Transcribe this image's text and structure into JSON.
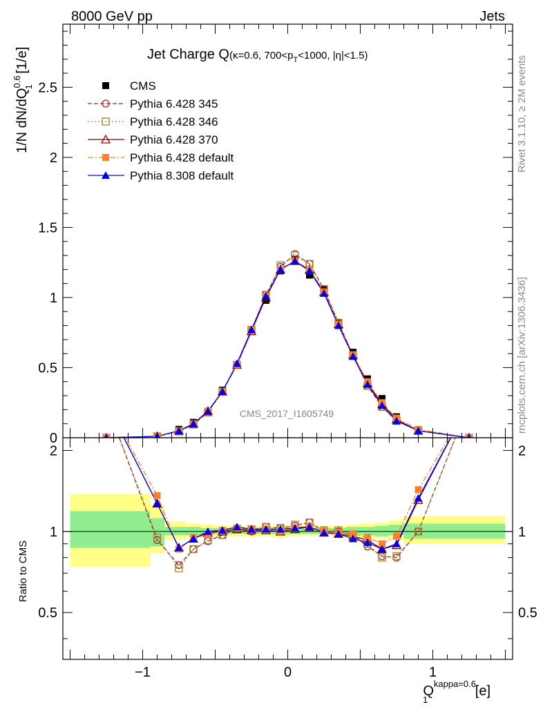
{
  "header": {
    "left": "8000 GeV pp",
    "right": "Jets"
  },
  "side": {
    "rivet": "Rivet 3.1.10, ≥ 2M events",
    "mcplots": "mcplots.cern.ch [arXiv:1306.3436]"
  },
  "watermark": "CMS_2017_I1605749",
  "colors": {
    "cms": "#000000",
    "p345": "#b22222",
    "p346": "#a0822d",
    "p370": "#8b0000",
    "p6def": "#ff7f2a",
    "p8def": "#0000ee",
    "band_inner": "#90ee90",
    "band_outer": "#ffff88"
  },
  "chart_data": {
    "type": "scatter",
    "title": {
      "main": "Jet Charge Q",
      "sub": "(κ=0.6, 700<p",
      "sub_index": "T",
      "sub_tail": "<1000, |η|<1.5)"
    },
    "xlabel": {
      "base": "Q",
      "sub": "1",
      "sup": "kappa=0.6",
      "unit": " [e]"
    },
    "ylabel": {
      "pre": "1/N dN/dQ",
      "sub": "1",
      "sup": "0.6",
      "unit": " [1/e]"
    },
    "ratio_ylabel": "Ratio to CMS",
    "xlim": [
      -1.55,
      1.55
    ],
    "ylim": [
      0,
      2.95
    ],
    "ratio_ylim": [
      0.335,
      2.23
    ],
    "x_ticks": [
      "−1",
      "0",
      "1"
    ],
    "y_ticks": [
      "0",
      "0.5",
      "1",
      "1.5",
      "2",
      "2.5"
    ],
    "ratio_ticks": [
      "0.5",
      "1",
      "2"
    ],
    "x": [
      -1.25,
      -0.9,
      -0.75,
      -0.65,
      -0.55,
      -0.45,
      -0.35,
      -0.25,
      -0.15,
      -0.05,
      0.05,
      0.15,
      0.25,
      0.35,
      0.45,
      0.55,
      0.65,
      0.75,
      0.9,
      1.25
    ],
    "series": [
      {
        "name": "CMS",
        "key": "cms",
        "marker": "square-filled",
        "dash": "none",
        "values": [
          0.0,
          0.01,
          0.06,
          0.11,
          0.19,
          0.34,
          0.52,
          0.77,
          0.98,
          1.19,
          1.27,
          1.16,
          1.06,
          0.82,
          0.61,
          0.42,
          0.28,
          0.15,
          0.05,
          0.0
        ],
        "ratio": []
      },
      {
        "name": "Pythia 6.428 345",
        "key": "p345",
        "marker": "circle-open",
        "dash": "6,3",
        "values": [
          0.0,
          0.01,
          0.045,
          0.095,
          0.18,
          0.33,
          0.52,
          0.77,
          1.02,
          1.22,
          1.31,
          1.24,
          1.06,
          0.82,
          0.59,
          0.37,
          0.22,
          0.12,
          0.05,
          0.0
        ],
        "ratio": [
          3.0,
          0.93,
          0.75,
          0.86,
          0.92,
          0.97,
          1.02,
          1.0,
          1.04,
          1.03,
          1.05,
          1.08,
          1.0,
          1.0,
          0.97,
          0.88,
          0.81,
          0.8,
          1.0,
          3.0
        ]
      },
      {
        "name": "Pythia 6.428 346",
        "key": "p346",
        "marker": "square-open",
        "dash": "2,3",
        "values": [
          0.0,
          0.01,
          0.045,
          0.095,
          0.18,
          0.33,
          0.52,
          0.77,
          1.02,
          1.23,
          1.3,
          1.24,
          1.06,
          0.82,
          0.59,
          0.37,
          0.22,
          0.12,
          0.05,
          0.0
        ],
        "ratio": [
          3.0,
          0.95,
          0.73,
          0.86,
          0.93,
          0.97,
          1.02,
          1.02,
          1.04,
          1.03,
          1.06,
          1.08,
          1.01,
          1.01,
          0.97,
          0.9,
          0.8,
          0.81,
          1.0,
          3.0
        ]
      },
      {
        "name": "Pythia 6.428 370",
        "key": "p370",
        "marker": "triangle-open",
        "dash": "none",
        "values": [
          0.0,
          0.01,
          0.05,
          0.1,
          0.19,
          0.33,
          0.52,
          0.76,
          1.0,
          1.2,
          1.26,
          1.2,
          1.04,
          0.81,
          0.59,
          0.39,
          0.24,
          0.13,
          0.05,
          0.0
        ],
        "ratio": [
          3.0,
          1.27,
          0.87,
          0.94,
          0.99,
          1.0,
          1.02,
          1.01,
          1.01,
          1.0,
          1.02,
          1.04,
          0.99,
          0.98,
          0.96,
          0.93,
          0.86,
          0.89,
          1.31,
          3.0
        ]
      },
      {
        "name": "Pythia 6.428 default",
        "key": "p6def",
        "marker": "square-filled",
        "dash": "8,3,2,3",
        "values": [
          0.0,
          0.01,
          0.05,
          0.1,
          0.19,
          0.33,
          0.52,
          0.77,
          1.01,
          1.2,
          1.26,
          1.2,
          1.04,
          0.81,
          0.59,
          0.4,
          0.25,
          0.14,
          0.06,
          0.0
        ],
        "ratio": [
          3.0,
          1.36,
          0.86,
          0.95,
          0.97,
          1.01,
          1.03,
          1.02,
          1.02,
          1.01,
          1.03,
          1.05,
          1.0,
          0.99,
          0.98,
          0.95,
          0.9,
          0.96,
          1.43,
          3.0
        ]
      },
      {
        "name": "Pythia 8.308 default",
        "key": "p8def",
        "marker": "triangle-filled",
        "dash": "none",
        "values": [
          0.0,
          0.01,
          0.05,
          0.1,
          0.19,
          0.33,
          0.53,
          0.77,
          1.01,
          1.2,
          1.26,
          1.19,
          1.03,
          0.8,
          0.58,
          0.38,
          0.23,
          0.12,
          0.05,
          0.0
        ],
        "ratio": [
          3.0,
          1.27,
          0.87,
          0.94,
          1.0,
          1.01,
          1.04,
          1.02,
          1.02,
          1.02,
          1.03,
          1.04,
          0.99,
          0.98,
          0.94,
          0.91,
          0.86,
          0.9,
          1.33,
          3.0
        ]
      }
    ],
    "uncertainty_bands": {
      "edges": [
        -1.5,
        -0.95,
        -0.85,
        -0.7,
        -0.6,
        -0.5,
        -0.4,
        -0.3,
        -0.2,
        -0.1,
        0.0,
        0.1,
        0.2,
        0.3,
        0.4,
        0.5,
        0.6,
        0.7,
        0.8,
        0.95,
        1.5
      ],
      "inner_low": [
        0.87,
        0.88,
        0.97,
        0.97,
        0.98,
        0.98,
        0.98,
        0.98,
        0.98,
        0.98,
        0.98,
        0.98,
        0.98,
        0.98,
        0.97,
        0.97,
        0.96,
        0.97,
        0.94,
        0.94
      ],
      "inner_high": [
        1.19,
        1.12,
        1.04,
        1.04,
        1.03,
        1.03,
        1.03,
        1.03,
        1.03,
        1.03,
        1.03,
        1.03,
        1.03,
        1.03,
        1.04,
        1.04,
        1.05,
        1.06,
        1.07,
        1.07
      ],
      "outer_low": [
        0.74,
        0.83,
        0.93,
        0.95,
        0.96,
        0.96,
        0.96,
        0.96,
        0.96,
        0.95,
        0.96,
        0.97,
        0.97,
        0.96,
        0.95,
        0.95,
        0.94,
        0.93,
        0.9,
        0.9
      ],
      "outer_high": [
        1.38,
        1.25,
        1.09,
        1.07,
        1.06,
        1.05,
        1.05,
        1.05,
        1.05,
        1.05,
        1.05,
        1.05,
        1.05,
        1.05,
        1.06,
        1.07,
        1.08,
        1.1,
        1.14,
        1.14
      ]
    },
    "legend_position": "top-left",
    "grid": false
  }
}
